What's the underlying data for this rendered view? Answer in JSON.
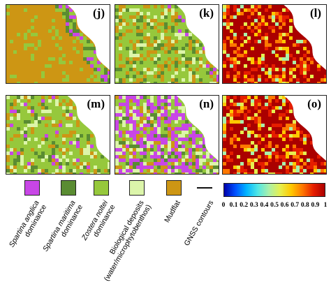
{
  "panels": [
    {
      "label": "(j)",
      "type": "class"
    },
    {
      "label": "(k)",
      "type": "class"
    },
    {
      "label": "(l)",
      "type": "index"
    },
    {
      "label": "(m)",
      "type": "class"
    },
    {
      "label": "(n)",
      "type": "class"
    },
    {
      "label": "(o)",
      "type": "index"
    }
  ],
  "legend": {
    "classes": [
      {
        "label_lines": [
          "Spartina anglica",
          "dominance"
        ],
        "color": "#c846e6"
      },
      {
        "label_lines": [
          "Spartina maritima",
          "dominance"
        ],
        "color": "#5a8c32"
      },
      {
        "label_lines": [
          "Zostera noltei",
          "dominance"
        ],
        "color": "#96c83c"
      },
      {
        "label_lines": [
          "Biological deposits",
          "(water/microphytobenthos)"
        ],
        "color": "#dcf5aa"
      },
      {
        "label_lines": [
          "Mudflat"
        ],
        "color": "#cd9614"
      }
    ],
    "gnss_label": "GNSS contours"
  },
  "colorbar": {
    "ticks": [
      "0",
      "0.1",
      "0.2",
      "0.3",
      "0.4",
      "0.5",
      "0.6",
      "0.7",
      "0.8",
      "0.9",
      "1"
    ],
    "colors": [
      "#0000aa",
      "#0050ff",
      "#00b4ff",
      "#50e6e6",
      "#aaf0aa",
      "#e6f050",
      "#ffc800",
      "#ff7800",
      "#e61e00",
      "#aa0000"
    ]
  }
}
